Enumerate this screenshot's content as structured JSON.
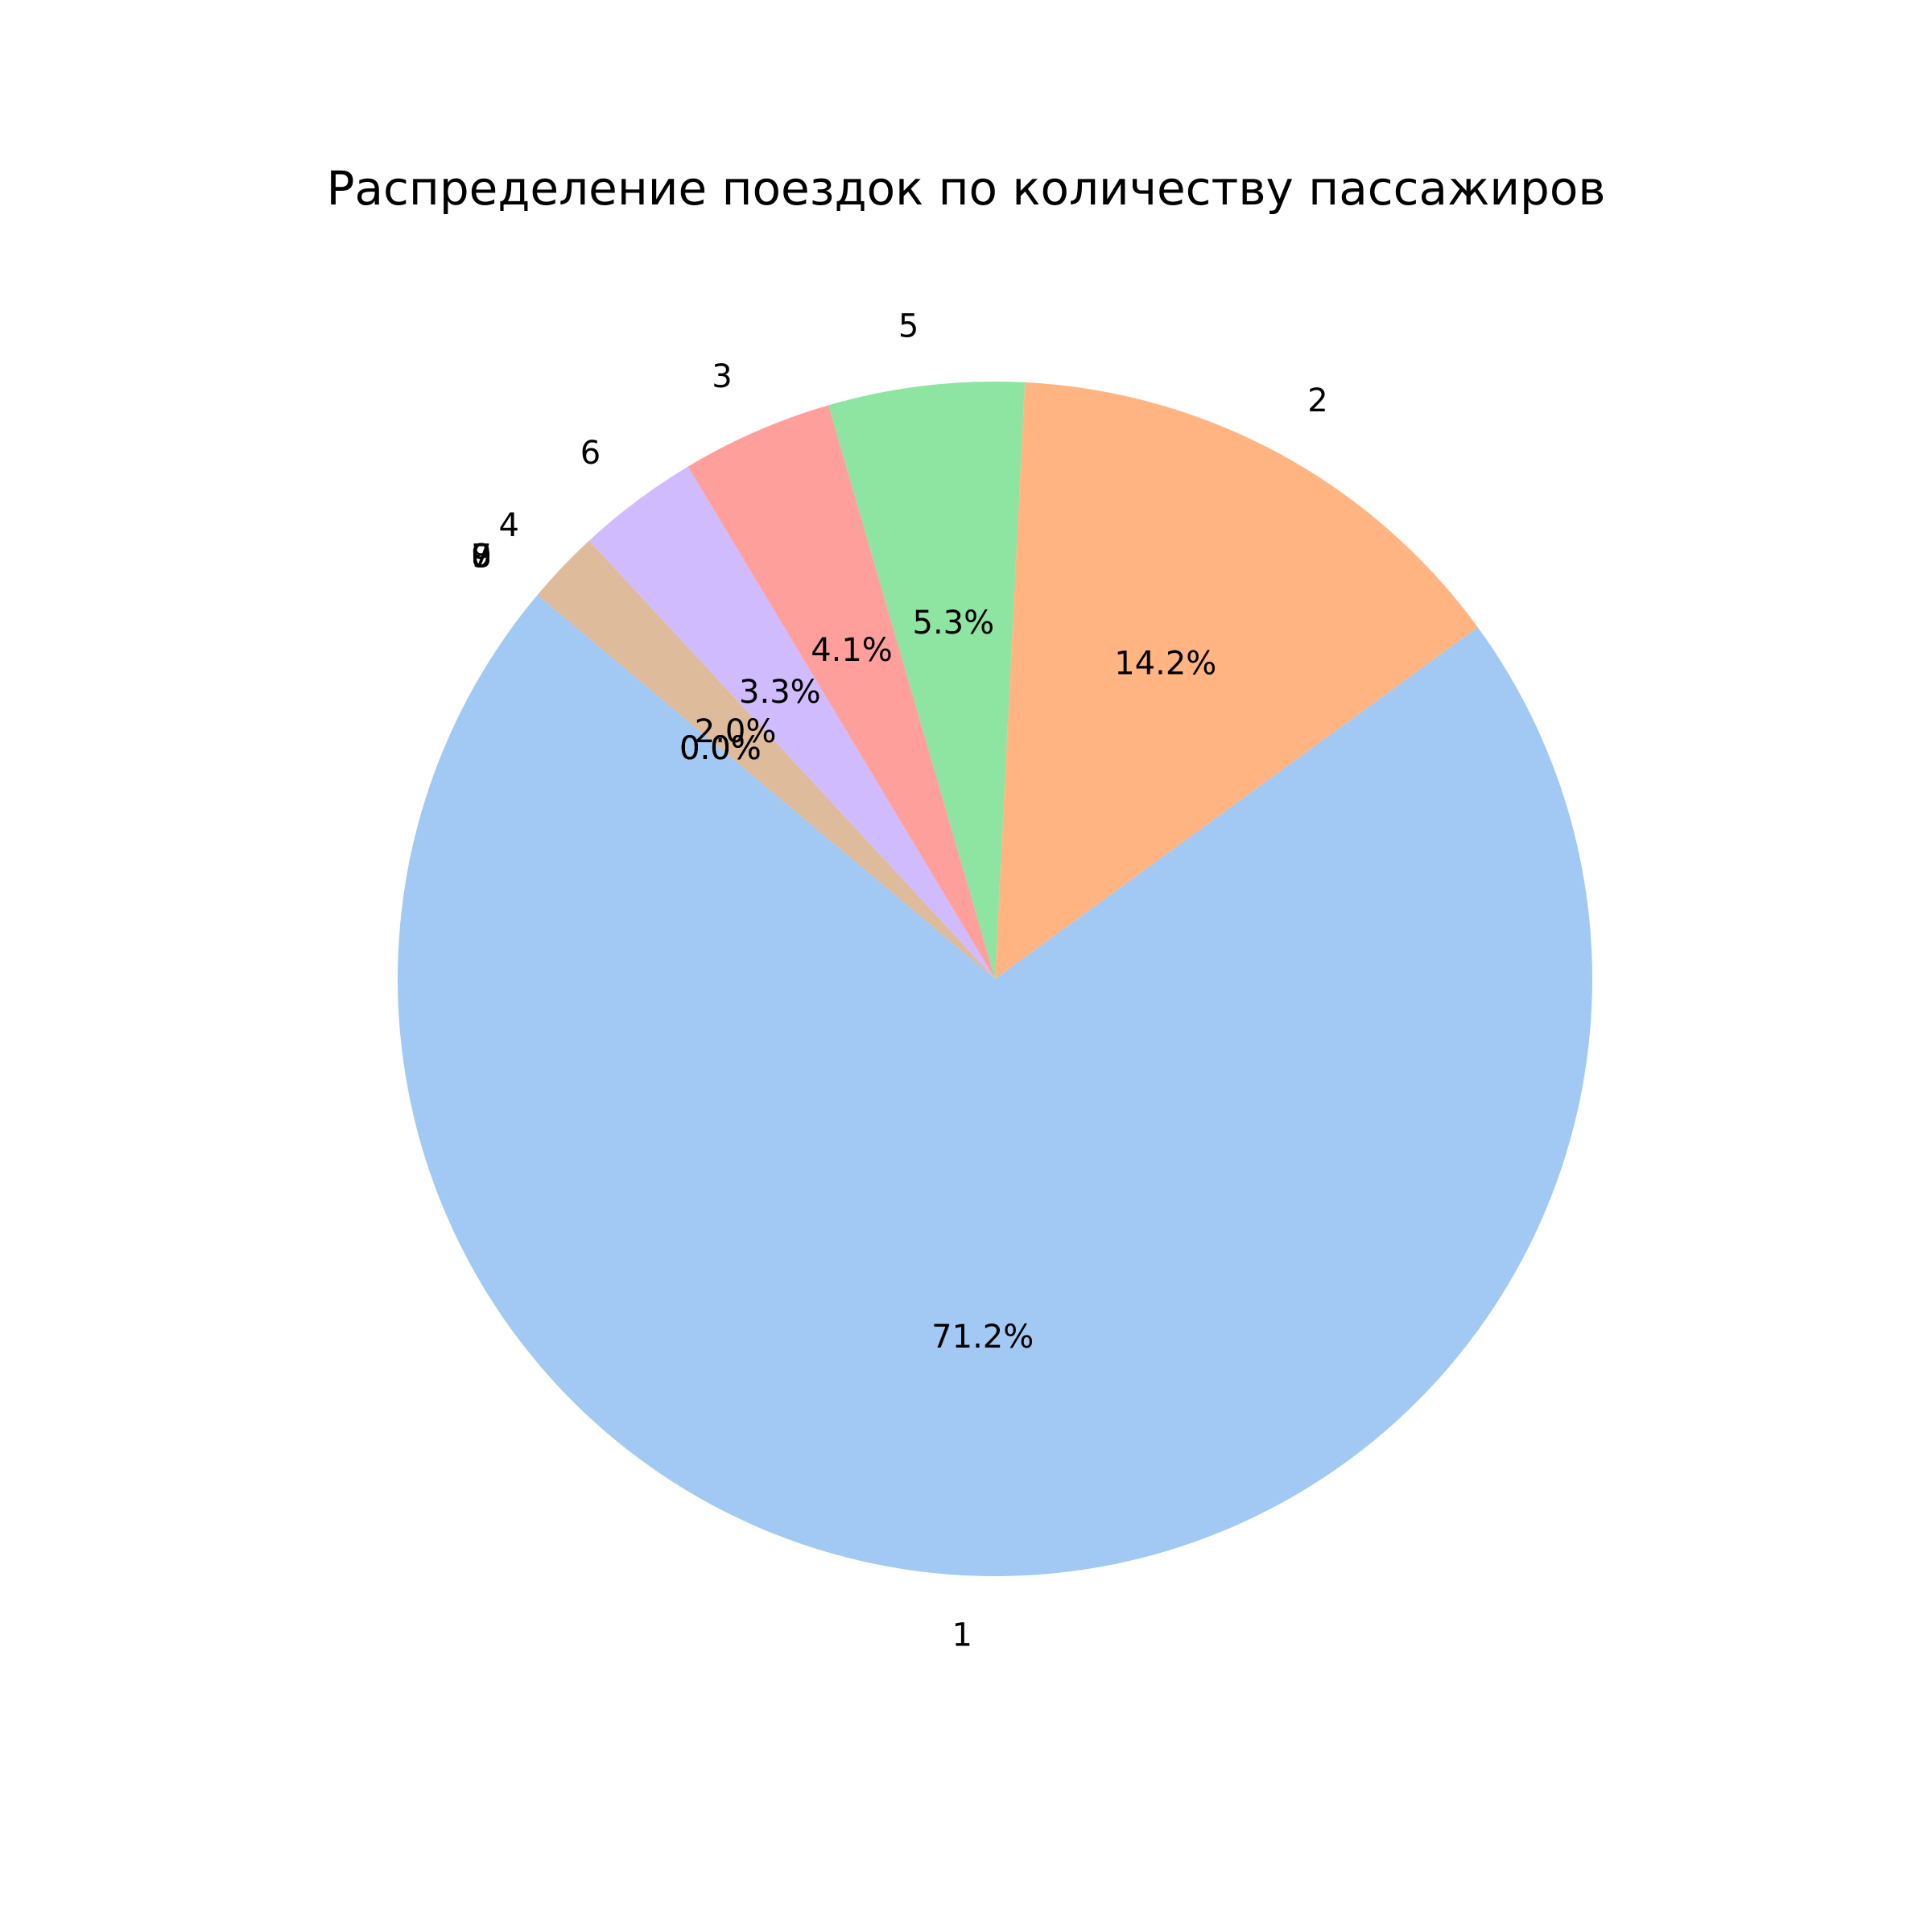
{
  "chart_data": {
    "type": "pie",
    "title": "Распределение поездок по количеству пассажиров",
    "start_angle_deg": 140,
    "direction": "counterclockwise",
    "slices": [
      {
        "label": "1",
        "value": 71.2,
        "pct_label": "71.2%",
        "color": "#a1c9f4"
      },
      {
        "label": "2",
        "value": 14.2,
        "pct_label": "14.2%",
        "color": "#ffb482"
      },
      {
        "label": "5",
        "value": 5.3,
        "pct_label": "5.3%",
        "color": "#8de5a1"
      },
      {
        "label": "3",
        "value": 4.1,
        "pct_label": "4.1%",
        "color": "#ff9f9b"
      },
      {
        "label": "6",
        "value": 3.3,
        "pct_label": "3.3%",
        "color": "#d0bbff"
      },
      {
        "label": "4",
        "value": 2.0,
        "pct_label": "2.0%",
        "color": "#debb9b"
      },
      {
        "label": "0",
        "value": 0.0,
        "pct_label": "0.0%",
        "color": "#fab0e4"
      },
      {
        "label": "9",
        "value": 0.0,
        "pct_label": "0.0%",
        "color": "#cfcfcf"
      },
      {
        "label": "7",
        "value": 0.0,
        "pct_label": "0.0%",
        "color": "#fffea3"
      },
      {
        "label": "8",
        "value": 0.0,
        "pct_label": "0.0%",
        "color": "#b9f2f0"
      }
    ]
  }
}
